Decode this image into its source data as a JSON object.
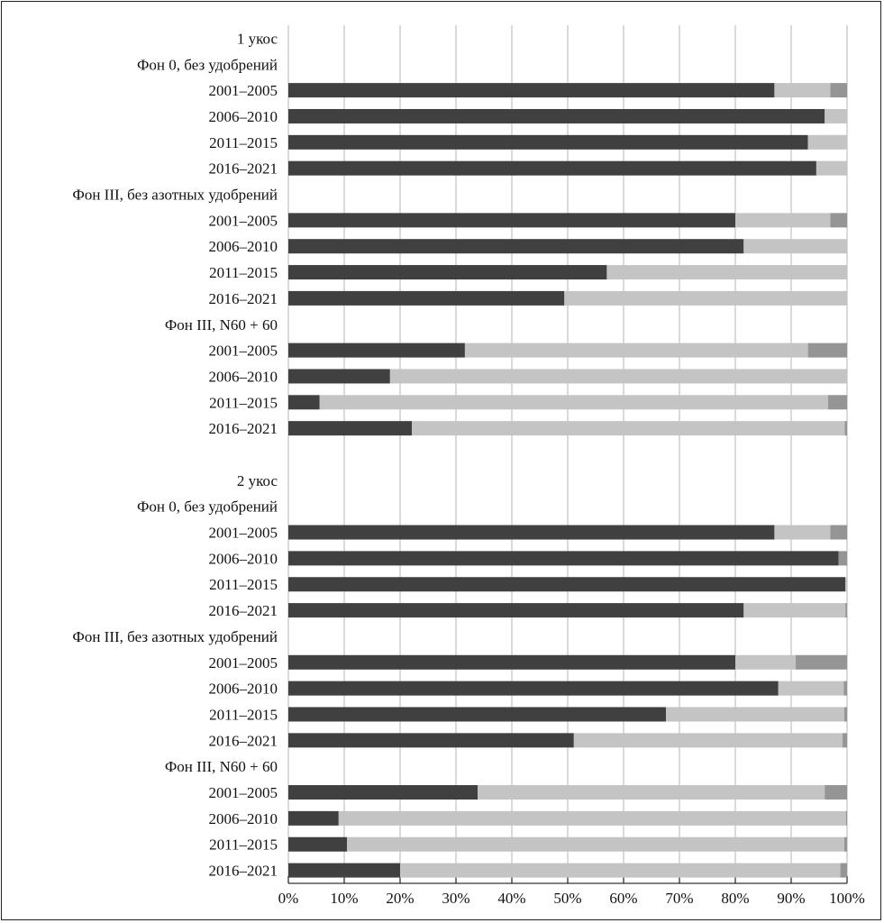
{
  "chart_data": {
    "type": "bar",
    "orientation": "horizontal",
    "stacked": true,
    "percent": true,
    "xlim": [
      0,
      100
    ],
    "xticks": [
      "0%",
      "10%",
      "20%",
      "30%",
      "40%",
      "50%",
      "60%",
      "70%",
      "80%",
      "90%",
      "100%"
    ],
    "grid": true,
    "legend": "none",
    "colors": [
      "#404040",
      "#c4c4c4",
      "#959595"
    ],
    "rows": [
      {
        "label": "1 укос",
        "kind": "section"
      },
      {
        "label": "Фон 0, без удобрений",
        "kind": "group"
      },
      {
        "label": "2001–2005",
        "values": [
          87,
          10,
          3
        ]
      },
      {
        "label": "2006–2010",
        "values": [
          96,
          4,
          0
        ]
      },
      {
        "label": "2011–2015",
        "values": [
          93,
          7,
          0
        ]
      },
      {
        "label": "2016–2021",
        "values": [
          94.5,
          5.5,
          0
        ]
      },
      {
        "label": "Фон III, без азотных удобрений",
        "kind": "group"
      },
      {
        "label": "2001–2005",
        "values": [
          80,
          17,
          3
        ]
      },
      {
        "label": "2006–2010",
        "values": [
          81.5,
          18.5,
          0
        ]
      },
      {
        "label": "2011–2015",
        "values": [
          57,
          43,
          0
        ]
      },
      {
        "label": "2016–2021",
        "values": [
          49.4,
          50.6,
          0
        ]
      },
      {
        "label": "Фон III, N60 + 60",
        "kind": "group"
      },
      {
        "label": "2001–2005",
        "values": [
          31.6,
          61.4,
          7
        ]
      },
      {
        "label": "2006–2010",
        "values": [
          18.2,
          81.8,
          0
        ]
      },
      {
        "label": "2011–2015",
        "values": [
          5.6,
          91,
          3.4
        ]
      },
      {
        "label": "2016–2021",
        "values": [
          22.1,
          77.5,
          0.4
        ]
      },
      {
        "label": "",
        "kind": "spacer"
      },
      {
        "label": "2 укос",
        "kind": "section"
      },
      {
        "label": "Фон 0, без удобрений",
        "kind": "group"
      },
      {
        "label": "2001–2005",
        "values": [
          87,
          10,
          3
        ]
      },
      {
        "label": "2006–2010",
        "values": [
          98.5,
          0,
          1.5
        ]
      },
      {
        "label": "2011–2015",
        "values": [
          99.7,
          0.3,
          0
        ]
      },
      {
        "label": "2016–2021",
        "values": [
          81.5,
          18.2,
          0.3
        ]
      },
      {
        "label": "Фон III, без азотных удобрений",
        "kind": "group"
      },
      {
        "label": "2001–2005",
        "values": [
          80,
          10.8,
          9.2
        ]
      },
      {
        "label": "2006–2010",
        "values": [
          87.7,
          11.7,
          0.6
        ]
      },
      {
        "label": "2011–2015",
        "values": [
          67.6,
          31.9,
          0.5
        ]
      },
      {
        "label": "2016–2021",
        "values": [
          51.1,
          48.1,
          0.8
        ]
      },
      {
        "label": "Фон III, N60 + 60",
        "kind": "group"
      },
      {
        "label": "2001–2005",
        "values": [
          33.9,
          62.1,
          4
        ]
      },
      {
        "label": "2006–2010",
        "values": [
          9,
          90.8,
          0.2
        ]
      },
      {
        "label": "2011–2015",
        "values": [
          10.5,
          89,
          0.5
        ]
      },
      {
        "label": "2016–2021",
        "values": [
          20,
          78.8,
          1.2
        ]
      }
    ]
  }
}
